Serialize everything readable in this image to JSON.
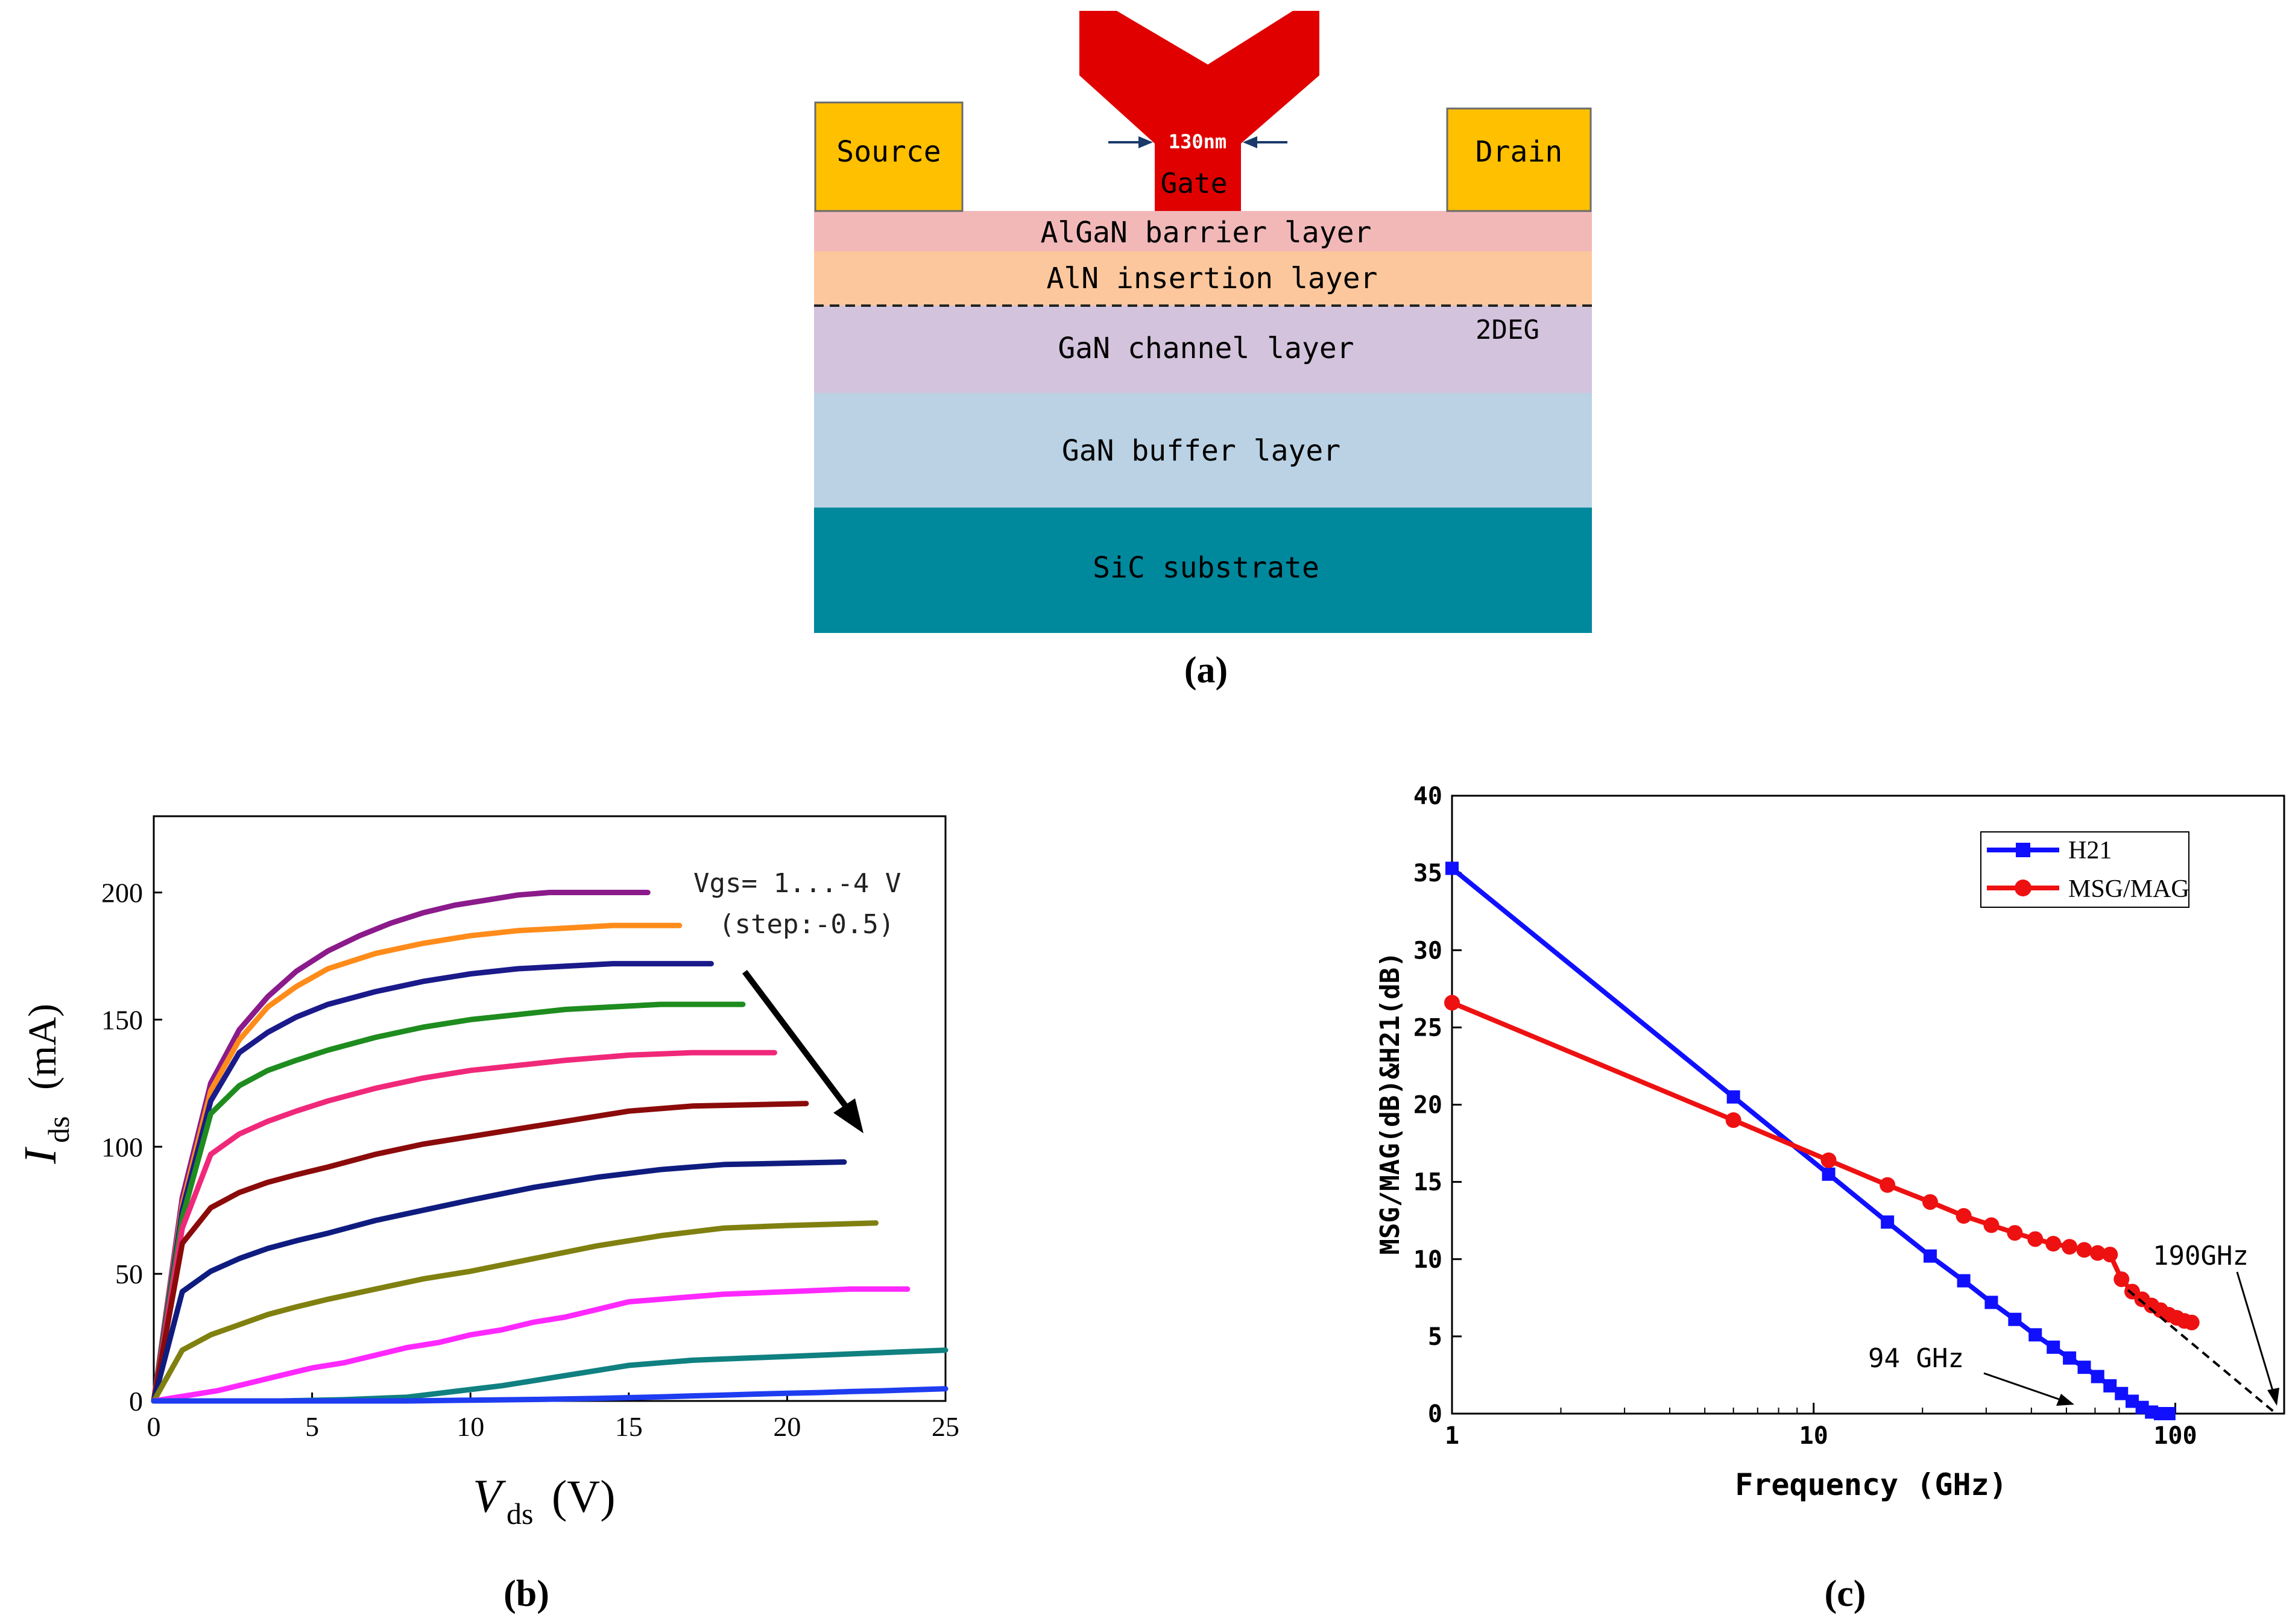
{
  "panel_a": {
    "caption": "(a)",
    "labels": {
      "source": "Source",
      "drain": "Drain",
      "gate": "Gate",
      "gate_length": "130nm",
      "two_deg": "2DEG"
    },
    "layers": [
      {
        "name": "AlGaN barrier layer",
        "color": "#f2b8b8"
      },
      {
        "name": "AlN insertion layer",
        "color": "#fcc79c"
      },
      {
        "name": "GaN channel layer",
        "color": "#d3c3dc"
      },
      {
        "name": "GaN buffer layer",
        "color": "#bad2e4"
      },
      {
        "name": "SiC substrate",
        "color": "#00889c"
      }
    ],
    "colors": {
      "contact": "#ffc000",
      "gate": "#e00000"
    }
  },
  "panel_b": {
    "caption": "(b)",
    "annotation_line1": "Vgs= 1...-4 V",
    "annotation_line2": "(step:-0.5)"
  },
  "panel_c": {
    "caption": "(c)",
    "annotation_94": "94 GHz",
    "annotation_190": "190GHz"
  },
  "chart_data": [
    {
      "id": "b",
      "type": "line",
      "xlabel_main": "V",
      "xlabel_sub": "ds",
      "xlabel_unit": "(V)",
      "ylabel_main": "I",
      "ylabel_sub": "ds",
      "ylabel_unit": "(mA)",
      "xlim": [
        0,
        25
      ],
      "ylim": [
        0,
        230
      ],
      "xticks": [
        0,
        5,
        10,
        15,
        20,
        25
      ],
      "yticks": [
        0,
        50,
        100,
        150,
        200
      ],
      "series": [
        {
          "name": "Vgs=1",
          "color": "#8b1a8b",
          "x": [
            0,
            0.9,
            1.8,
            2.7,
            3.6,
            4.5,
            5.5,
            6.5,
            7.5,
            8.5,
            9.5,
            10.5,
            11.5,
            12.5,
            13.5,
            14.5,
            15.6
          ],
          "y": [
            0,
            80,
            125,
            146,
            159,
            169,
            177,
            183,
            188,
            192,
            195,
            197,
            199,
            200,
            200,
            200,
            200
          ]
        },
        {
          "name": "Vgs=0.5",
          "color": "#ff8c1a",
          "x": [
            0,
            0.9,
            1.8,
            2.7,
            3.6,
            4.5,
            5.5,
            7,
            8.5,
            10,
            11.5,
            13,
            14.5,
            16.6
          ],
          "y": [
            0,
            77,
            122,
            142,
            155,
            163,
            170,
            176,
            180,
            183,
            185,
            186,
            187,
            187
          ]
        },
        {
          "name": "Vgs=0",
          "color": "#1a1a8b",
          "x": [
            0,
            0.9,
            1.8,
            2.7,
            3.6,
            4.5,
            5.5,
            7,
            8.5,
            10,
            11.5,
            13,
            14.5,
            15.5,
            17.6
          ],
          "y": [
            0,
            75,
            118,
            137,
            145,
            151,
            156,
            161,
            165,
            168,
            170,
            171,
            172,
            172,
            172
          ]
        },
        {
          "name": "Vgs=-0.5",
          "color": "#1e8c1e",
          "x": [
            0,
            0.9,
            1.8,
            2.7,
            3.6,
            4.5,
            5.5,
            7,
            8.5,
            10,
            11.5,
            13,
            14.5,
            16,
            18.6
          ],
          "y": [
            0,
            72,
            113,
            124,
            130,
            134,
            138,
            143,
            147,
            150,
            152,
            154,
            155,
            156,
            156
          ]
        },
        {
          "name": "Vgs=-1",
          "color": "#f0287a",
          "x": [
            0,
            0.9,
            1.8,
            2.7,
            3.6,
            4.5,
            5.5,
            7,
            8.5,
            10,
            11.5,
            13,
            15,
            17,
            19.6
          ],
          "y": [
            0,
            68,
            97,
            105,
            110,
            114,
            118,
            123,
            127,
            130,
            132,
            134,
            136,
            137,
            137
          ]
        },
        {
          "name": "Vgs=-1.5",
          "color": "#8b0a0a",
          "x": [
            0,
            0.9,
            1.8,
            2.7,
            3.6,
            4.5,
            5.5,
            7,
            8.5,
            10,
            11.5,
            13,
            15,
            17,
            20.6
          ],
          "y": [
            0,
            62,
            76,
            82,
            86,
            89,
            92,
            97,
            101,
            104,
            107,
            110,
            114,
            116,
            117
          ]
        },
        {
          "name": "Vgs=-2",
          "color": "#0f1c7f",
          "x": [
            0,
            0.9,
            1.8,
            2.7,
            3.6,
            4.5,
            5.5,
            7,
            8.5,
            10,
            12,
            14,
            16,
            18,
            21.8
          ],
          "y": [
            0,
            43,
            51,
            56,
            60,
            63,
            66,
            71,
            75,
            79,
            84,
            88,
            91,
            93,
            94
          ]
        },
        {
          "name": "Vgs=-2.5",
          "color": "#808010",
          "x": [
            0,
            0.9,
            1.8,
            2.7,
            3.6,
            4.5,
            5.5,
            7,
            8.5,
            10,
            12,
            14,
            16,
            18,
            20,
            22.8
          ],
          "y": [
            0,
            20,
            26,
            30,
            34,
            37,
            40,
            44,
            48,
            51,
            56,
            61,
            65,
            68,
            69,
            70
          ]
        },
        {
          "name": "Vgs=-3",
          "color": "#ff28ff",
          "x": [
            0,
            1,
            2,
            3,
            4,
            5,
            6,
            7,
            8,
            9,
            10,
            11,
            12,
            13,
            14,
            15,
            16,
            17,
            18,
            20,
            22,
            23.8
          ],
          "y": [
            0,
            2,
            4,
            7,
            10,
            13,
            15,
            18,
            21,
            23,
            26,
            28,
            31,
            33,
            36,
            39,
            40,
            41,
            42,
            43,
            44,
            44
          ]
        },
        {
          "name": "Vgs=-3.5",
          "color": "#108080",
          "x": [
            0,
            2,
            4,
            6,
            8,
            9,
            10,
            11,
            12,
            13,
            14,
            15,
            16,
            17,
            18,
            19,
            20,
            21,
            22,
            23,
            24,
            25
          ],
          "y": [
            0,
            0,
            0,
            0.5,
            1.5,
            3,
            4.5,
            6,
            8,
            10,
            12,
            14,
            15,
            16,
            16.5,
            17,
            17.5,
            18,
            18.5,
            19,
            19.5,
            20
          ]
        },
        {
          "name": "Vgs=-4",
          "color": "#1e3cf0",
          "x": [
            0,
            5,
            8,
            10,
            12,
            14,
            15,
            16,
            17,
            18,
            19,
            20,
            21,
            22,
            23,
            24,
            25
          ],
          "y": [
            0,
            0,
            0,
            0.3,
            0.6,
            1,
            1.3,
            1.6,
            2,
            2.3,
            2.7,
            3,
            3.3,
            3.7,
            4,
            4.4,
            4.8
          ]
        }
      ]
    },
    {
      "id": "c",
      "type": "line",
      "xscale": "log",
      "xlabel": "Frequency (GHz)",
      "ylabel": "MSG/MAG(dB)&H21(dB)",
      "xlim": [
        1,
        200
      ],
      "ylim": [
        0,
        40
      ],
      "xticks": [
        1,
        10,
        100
      ],
      "yticks": [
        0,
        5,
        10,
        15,
        20,
        25,
        30,
        35,
        40
      ],
      "legend": "top-right",
      "series": [
        {
          "name": "H21",
          "color": "#1010ff",
          "marker": "square",
          "x": [
            1,
            6,
            11,
            16,
            21,
            26,
            31,
            36,
            41,
            46,
            51,
            56,
            61,
            66,
            71,
            76,
            81,
            86,
            91,
            96
          ],
          "y": [
            35.3,
            20.5,
            15.5,
            12.4,
            10.2,
            8.6,
            7.2,
            6.1,
            5.1,
            4.3,
            3.6,
            3.0,
            2.4,
            1.8,
            1.3,
            0.8,
            0.4,
            0.1,
            0,
            0
          ]
        },
        {
          "name": "MSG/MAG",
          "color": "#ee1111",
          "marker": "circle",
          "x": [
            1,
            6,
            11,
            16,
            21,
            26,
            31,
            36,
            41,
            46,
            51,
            56,
            61,
            66,
            71,
            76,
            81,
            86,
            91,
            96,
            101,
            106,
            111
          ],
          "y": [
            26.6,
            19.0,
            16.4,
            14.8,
            13.7,
            12.8,
            12.2,
            11.7,
            11.3,
            11.0,
            10.8,
            10.6,
            10.4,
            10.3,
            8.7,
            7.9,
            7.4,
            7.0,
            6.7,
            6.4,
            6.2,
            6.0,
            5.9
          ]
        },
        {
          "name": "extrapolation",
          "color": "#000000",
          "dashed": true,
          "x": [
            74,
            190
          ],
          "y": [
            8.0,
            0
          ]
        }
      ]
    }
  ]
}
